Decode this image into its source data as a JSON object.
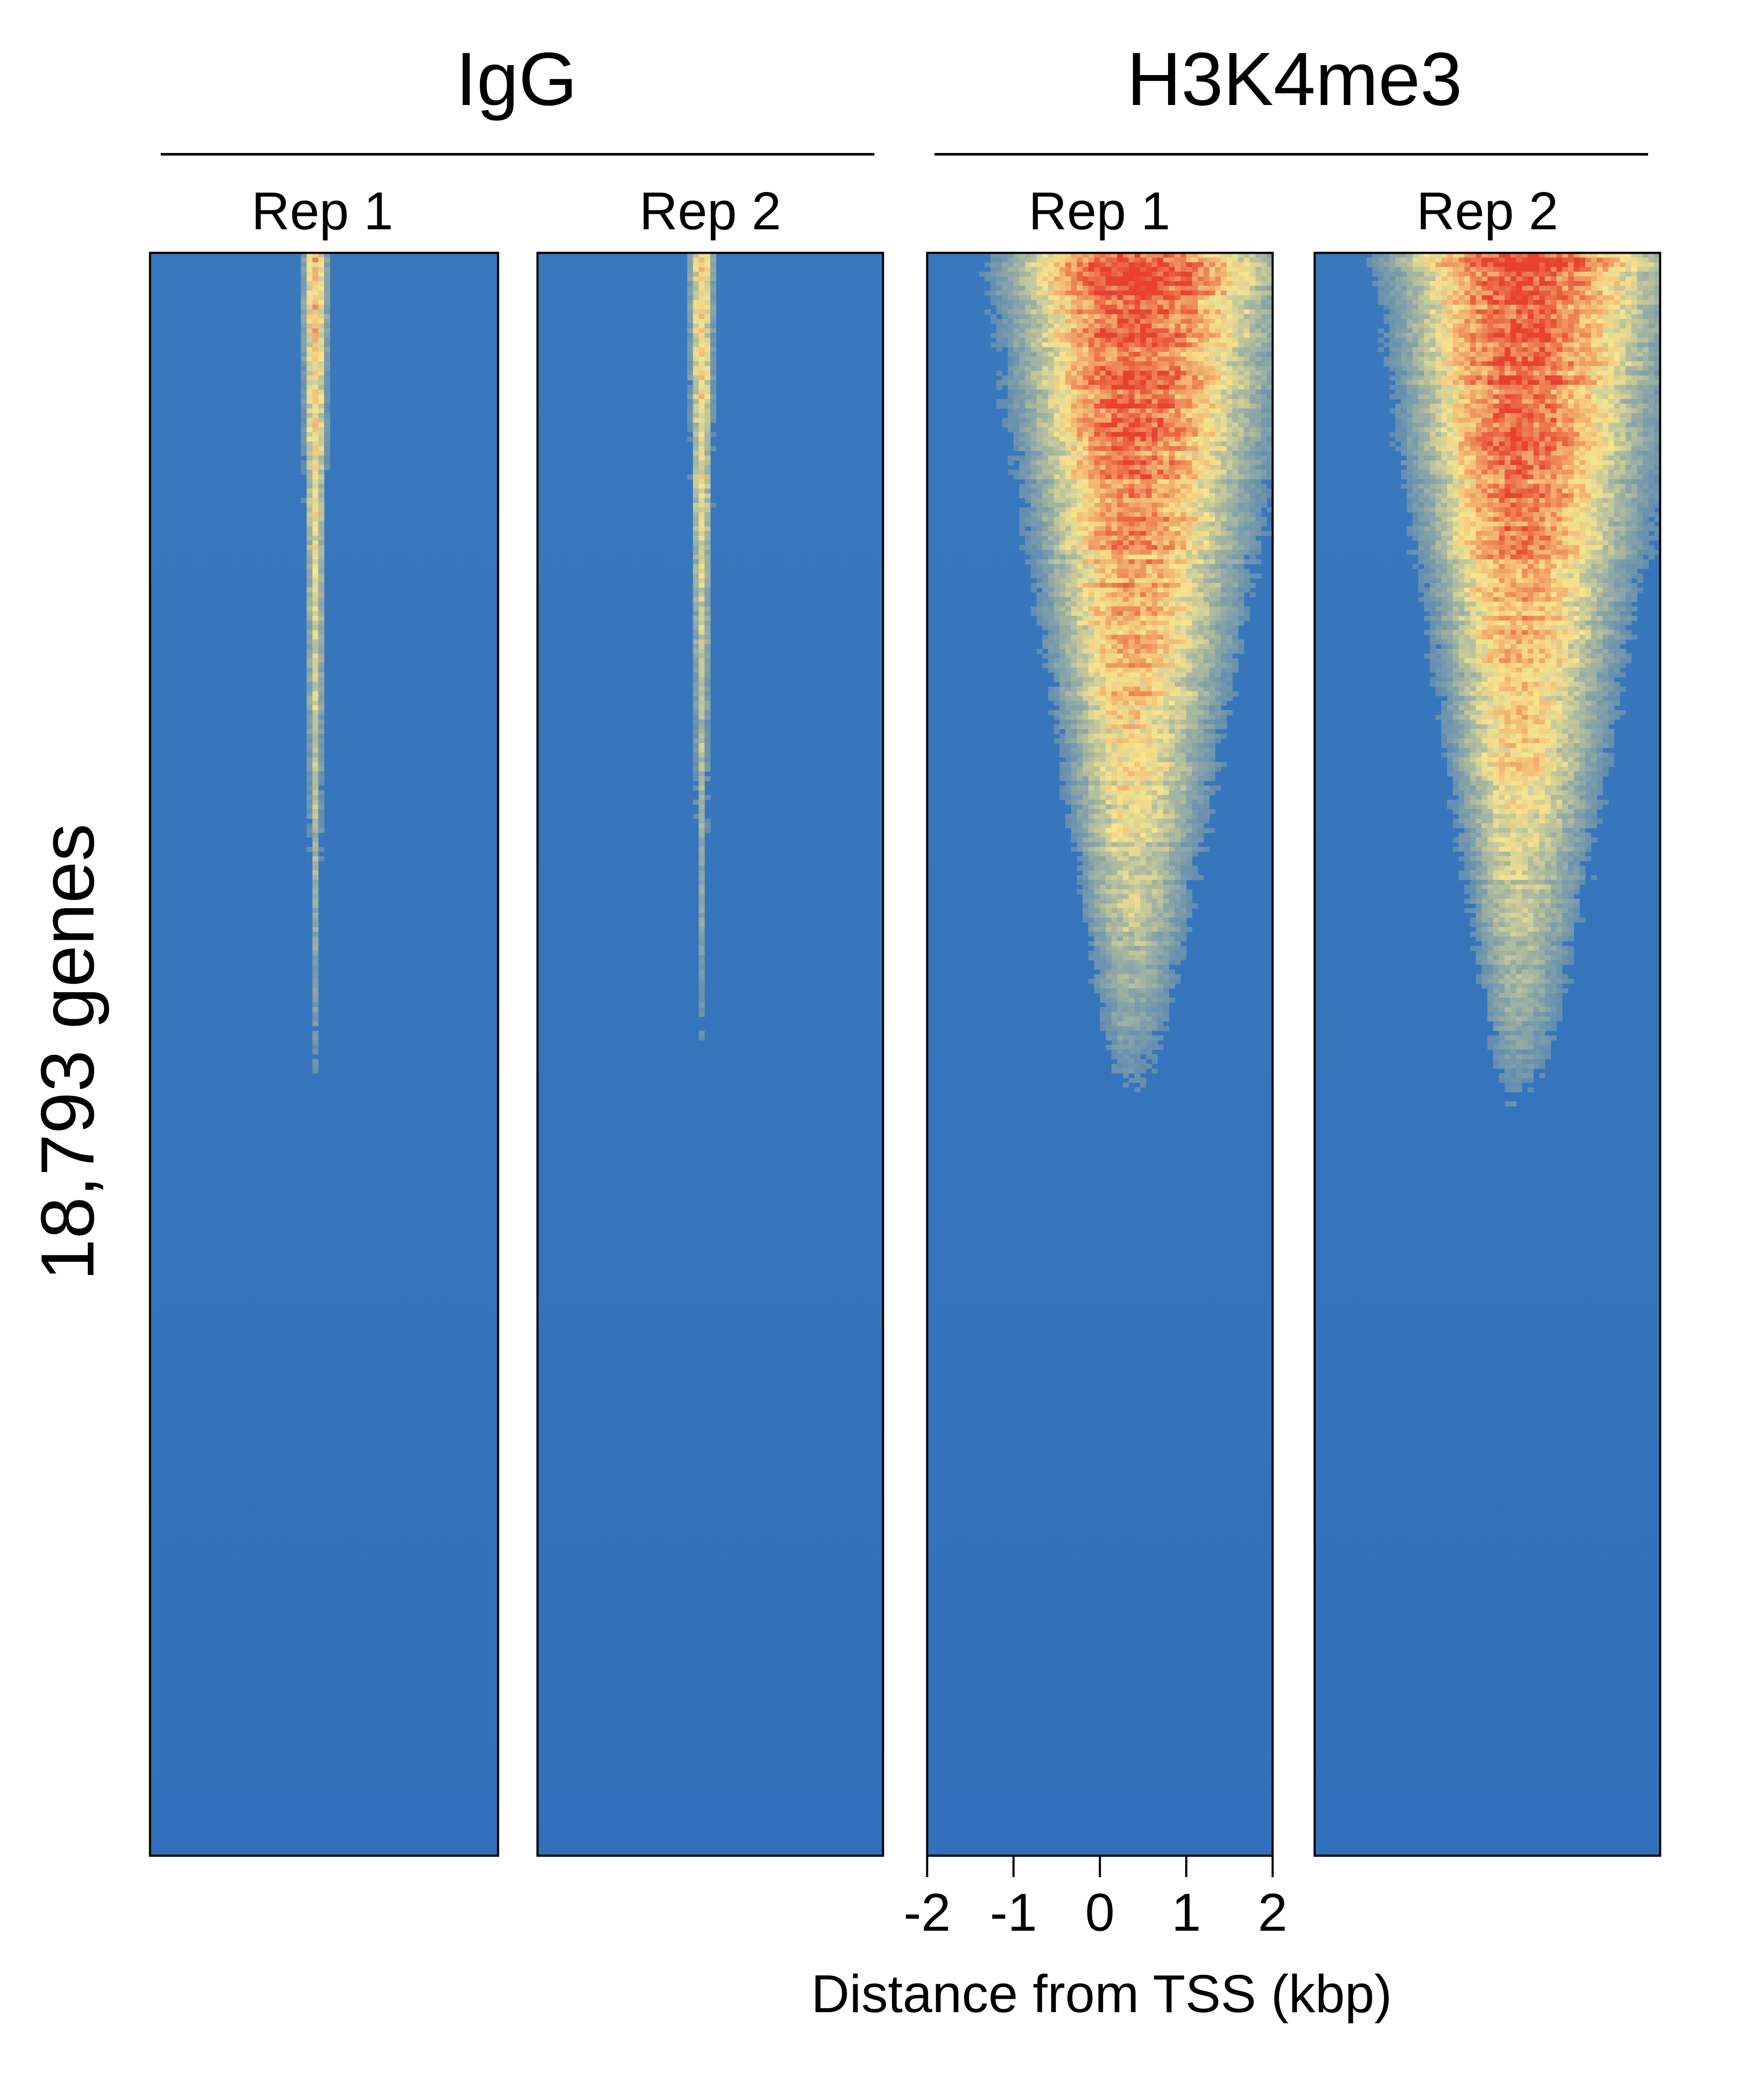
{
  "chart_data": {
    "type": "heatmap",
    "ylabel": "18,793 genes",
    "xlabel": "Distance from TSS (kbp)",
    "xticks": [
      "-2",
      "-1",
      "0",
      "1",
      "2"
    ],
    "xlim": [
      -2,
      2
    ],
    "rows_sorted_by_signal": "descending",
    "colorscale": [
      "#3171bb",
      "#f7e58f",
      "#e8412f"
    ],
    "groups": [
      {
        "name": "IgG",
        "panels": [
          {
            "label": "Rep 1",
            "peak_center_kbp": -0.1,
            "peak_width_kbp": 0.25,
            "max_intensity": 0.62,
            "signal_fraction_of_rows": 0.58,
            "asymmetry": 0
          },
          {
            "label": "Rep 2",
            "peak_center_kbp": -0.1,
            "peak_width_kbp": 0.25,
            "max_intensity": 0.58,
            "signal_fraction_of_rows": 0.55,
            "asymmetry": 0
          }
        ]
      },
      {
        "name": "H3K4me3",
        "panels": [
          {
            "label": "Rep 1",
            "peak_center_kbp": 0.35,
            "peak_width_kbp": 2.6,
            "max_intensity": 1.0,
            "signal_fraction_of_rows": 0.55,
            "asymmetry": 0.35
          },
          {
            "label": "Rep 2",
            "peak_center_kbp": 0.35,
            "peak_width_kbp": 2.6,
            "max_intensity": 1.0,
            "signal_fraction_of_rows": 0.56,
            "asymmetry": 0.35
          }
        ]
      }
    ]
  }
}
